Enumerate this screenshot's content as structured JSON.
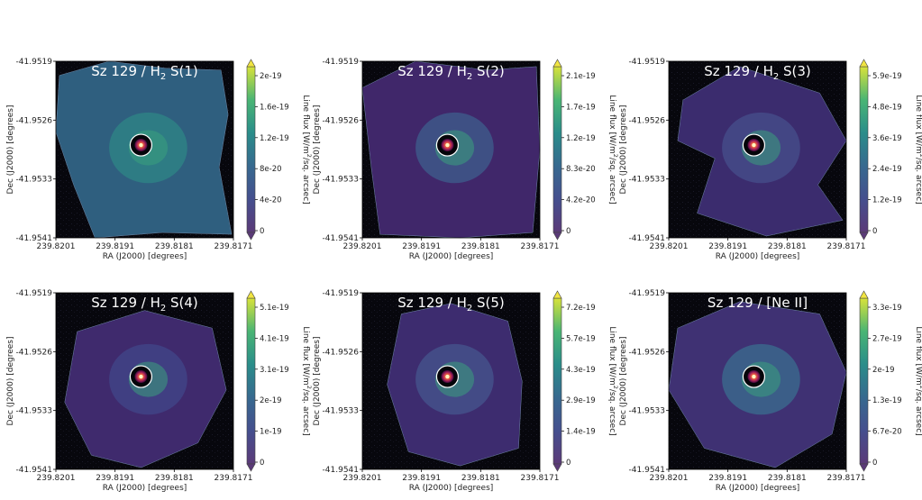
{
  "figure": {
    "panels": [
      {
        "title_prefix": "Sz 129 / H",
        "title_sub": "2",
        "title_suffix": " S(1)",
        "cb_ticks": [
          "2e-19",
          "1.6e-19",
          "1.2e-19",
          "8e-20",
          "4e-20",
          "0"
        ],
        "variant": "s1",
        "show_xlabels": true
      },
      {
        "title_prefix": "Sz 129 / H",
        "title_sub": "2",
        "title_suffix": " S(2)",
        "cb_ticks": [
          "2.1e-19",
          "1.7e-19",
          "1.2e-19",
          "8.3e-20",
          "4.2e-20",
          "0"
        ],
        "variant": "s2",
        "show_xlabels": true
      },
      {
        "title_prefix": "Sz 129 / H",
        "title_sub": "2",
        "title_suffix": " S(3)",
        "cb_ticks": [
          "5.9e-19",
          "4.8e-19",
          "3.6e-19",
          "2.4e-19",
          "1.2e-19",
          "0"
        ],
        "variant": "s3",
        "show_xlabels": true
      },
      {
        "title_prefix": "Sz 129 / H",
        "title_sub": "2",
        "title_suffix": " S(4)",
        "cb_ticks": [
          "5.1e-19",
          "4.1e-19",
          "3.1e-19",
          "2e-19",
          "1e-19",
          "0"
        ],
        "variant": "s4",
        "show_xlabels": true
      },
      {
        "title_prefix": "Sz 129 / H",
        "title_sub": "2",
        "title_suffix": " S(5)",
        "cb_ticks": [
          "7.2e-19",
          "5.7e-19",
          "4.3e-19",
          "2.9e-19",
          "1.4e-19",
          "0"
        ],
        "variant": "s5",
        "show_xlabels": false
      },
      {
        "title_prefix": "Sz 129 / [Ne II]",
        "title_sub": "",
        "title_suffix": "",
        "cb_ticks": [
          "3.3e-19",
          "2.7e-19",
          "2e-19",
          "1.3e-19",
          "6.7e-20",
          "0"
        ],
        "variant": "ne",
        "show_xlabels": true
      }
    ],
    "y_ticks": [
      "-41.9519",
      "-41.9526",
      "-41.9533",
      "-41.9541"
    ],
    "x_ticks": [
      "239.8201",
      "239.8191",
      "239.8181",
      "239.8171"
    ],
    "xlabel": "RA (J2000) [degrees]",
    "ylabel": "Dec (J2000) [degrees]",
    "cb_label_pre": "Line flux [W/m",
    "cb_label_sup": "2",
    "cb_label_post": "/sq. arcsec]"
  }
}
